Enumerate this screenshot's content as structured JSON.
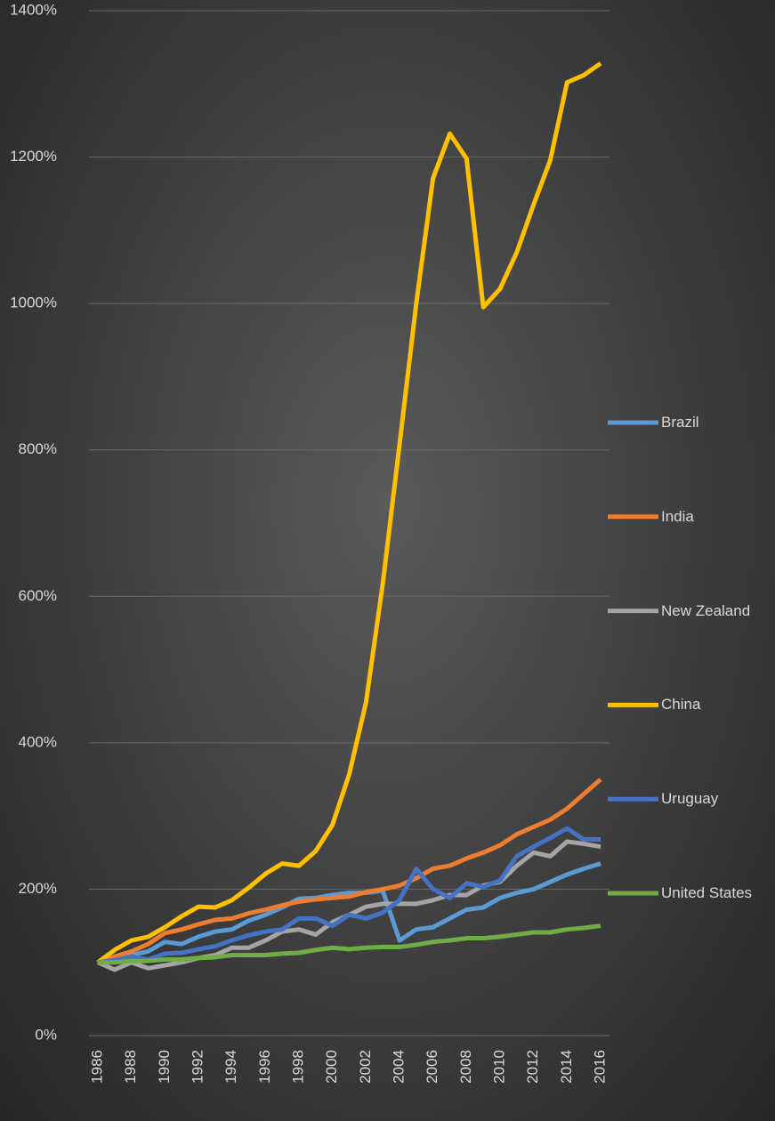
{
  "chart_data": {
    "type": "line",
    "x": [
      1986,
      1987,
      1988,
      1989,
      1990,
      1991,
      1992,
      1993,
      1994,
      1995,
      1996,
      1997,
      1998,
      1999,
      2000,
      2001,
      2002,
      2003,
      2004,
      2005,
      2006,
      2007,
      2008,
      2009,
      2010,
      2011,
      2012,
      2013,
      2014,
      2015,
      2016
    ],
    "xlim": [
      1986,
      2016
    ],
    "xticks": [
      1986,
      1988,
      1990,
      1992,
      1994,
      1996,
      1998,
      2000,
      2002,
      2004,
      2006,
      2008,
      2010,
      2012,
      2014,
      2016
    ],
    "ylim": [
      0,
      1400
    ],
    "yticks": [
      {
        "value": 0,
        "label": "0%"
      },
      {
        "value": 200,
        "label": "200%"
      },
      {
        "value": 400,
        "label": "400%"
      },
      {
        "value": 600,
        "label": "600%"
      },
      {
        "value": 800,
        "label": "800%"
      },
      {
        "value": 1000,
        "label": "1000%"
      },
      {
        "value": 1200,
        "label": "1200%"
      },
      {
        "value": 1400,
        "label": "1400%"
      }
    ],
    "grid": true,
    "legend": "right",
    "series": [
      {
        "name": "Brazil",
        "color": "#5b9bd5",
        "values": [
          100,
          105,
          110,
          115,
          128,
          125,
          135,
          142,
          145,
          157,
          165,
          175,
          187,
          188,
          192,
          195,
          195,
          198,
          130,
          145,
          148,
          160,
          172,
          175,
          188,
          195,
          200,
          210,
          220,
          228,
          235
        ]
      },
      {
        "name": "India",
        "color": "#ed7d31",
        "values": [
          100,
          108,
          115,
          125,
          140,
          145,
          152,
          158,
          160,
          167,
          172,
          178,
          183,
          186,
          188,
          190,
          196,
          200,
          205,
          215,
          228,
          232,
          242,
          250,
          260,
          275,
          285,
          295,
          310,
          330,
          350
        ]
      },
      {
        "name": "New Zealand",
        "color": "#a5a5a5",
        "values": [
          100,
          90,
          100,
          92,
          96,
          100,
          106,
          110,
          120,
          120,
          130,
          142,
          145,
          138,
          155,
          165,
          176,
          180,
          180,
          180,
          185,
          192,
          192,
          205,
          210,
          232,
          250,
          245,
          265,
          262,
          258
        ]
      },
      {
        "name": "China",
        "color": "#ffc000",
        "values": [
          100,
          117,
          130,
          135,
          148,
          163,
          176,
          175,
          185,
          202,
          221,
          235,
          232,
          252,
          288,
          357,
          455,
          617,
          807,
          1000,
          1171,
          1232,
          1198,
          995,
          1020,
          1070,
          1135,
          1196,
          1302,
          1312,
          1328
        ]
      },
      {
        "name": "Uruguay",
        "color": "#4472c4",
        "values": [
          100,
          103,
          108,
          104,
          112,
          113,
          118,
          122,
          130,
          137,
          142,
          145,
          160,
          160,
          150,
          165,
          160,
          168,
          185,
          228,
          200,
          188,
          208,
          203,
          212,
          245,
          258,
          270,
          283,
          268,
          268
        ]
      },
      {
        "name": "United States",
        "color": "#70ad47",
        "values": [
          100,
          100,
          102,
          102,
          104,
          104,
          106,
          107,
          110,
          110,
          110,
          112,
          113,
          117,
          120,
          118,
          120,
          121,
          121,
          124,
          128,
          130,
          133,
          133,
          135,
          138,
          141,
          141,
          145,
          147,
          150
        ]
      }
    ]
  }
}
